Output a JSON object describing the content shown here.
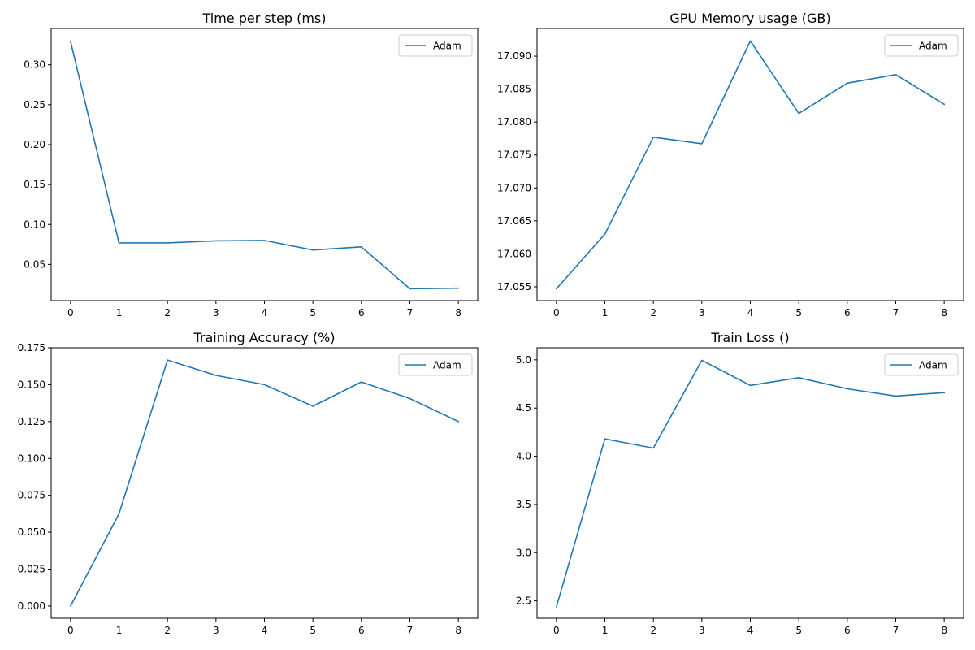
{
  "chart_data": [
    {
      "type": "line",
      "title": "Time per step (ms)",
      "xlabel": "",
      "ylabel": "",
      "x": [
        0,
        1,
        2,
        3,
        4,
        5,
        6,
        7,
        8
      ],
      "xticks": [
        "0",
        "1",
        "2",
        "3",
        "4",
        "5",
        "6",
        "7",
        "8"
      ],
      "yticks": [
        "0.05",
        "0.10",
        "0.15",
        "0.20",
        "0.25",
        "0.30"
      ],
      "xlim": [
        -0.4,
        8.4
      ],
      "ylim": [
        0.0046,
        0.3455
      ],
      "grid": false,
      "legend": "top-right",
      "series": [
        {
          "name": "Adam",
          "values": [
            0.329,
            0.077,
            0.077,
            0.0795,
            0.08,
            0.068,
            0.072,
            0.0195,
            0.0202
          ]
        }
      ]
    },
    {
      "type": "line",
      "title": "GPU Memory usage (GB)",
      "xlabel": "",
      "ylabel": "",
      "x": [
        0,
        1,
        2,
        3,
        4,
        5,
        6,
        7,
        8
      ],
      "xticks": [
        "0",
        "1",
        "2",
        "3",
        "4",
        "5",
        "6",
        "7",
        "8"
      ],
      "yticks": [
        "17.055",
        "17.060",
        "17.065",
        "17.070",
        "17.075",
        "17.080",
        "17.085",
        "17.090"
      ],
      "xlim": [
        -0.4,
        8.4
      ],
      "ylim": [
        17.0529,
        17.0942
      ],
      "grid": false,
      "legend": "top-right",
      "series": [
        {
          "name": "Adam",
          "values": [
            17.0547,
            17.063,
            17.0777,
            17.0767,
            17.0923,
            17.0813,
            17.0859,
            17.0872,
            17.0827
          ]
        }
      ]
    },
    {
      "type": "line",
      "title": "Training Accuracy (%)",
      "xlabel": "",
      "ylabel": "",
      "x": [
        0,
        1,
        2,
        3,
        4,
        5,
        6,
        7,
        8
      ],
      "xticks": [
        "0",
        "1",
        "2",
        "3",
        "4",
        "5",
        "6",
        "7",
        "8"
      ],
      "yticks": [
        "0.000",
        "0.025",
        "0.050",
        "0.075",
        "0.100",
        "0.125",
        "0.150",
        "0.175"
      ],
      "xlim": [
        -0.4,
        8.4
      ],
      "ylim": [
        -0.0083,
        0.175
      ],
      "grid": false,
      "legend": "top-right",
      "series": [
        {
          "name": "Adam",
          "values": [
            0.0,
            0.0625,
            0.1667,
            0.1563,
            0.15,
            0.1354,
            0.1518,
            0.1406,
            0.125
          ]
        }
      ]
    },
    {
      "type": "line",
      "title": "Train Loss ()",
      "xlabel": "",
      "ylabel": "",
      "x": [
        0,
        1,
        2,
        3,
        4,
        5,
        6,
        7,
        8
      ],
      "xticks": [
        "0",
        "1",
        "2",
        "3",
        "4",
        "5",
        "6",
        "7",
        "8"
      ],
      "yticks": [
        "2.5",
        "3.0",
        "3.5",
        "4.0",
        "4.5",
        "5.0"
      ],
      "xlim": [
        -0.4,
        8.4
      ],
      "ylim": [
        2.32,
        5.125
      ],
      "grid": false,
      "legend": "top-right",
      "series": [
        {
          "name": "Adam",
          "values": [
            2.44,
            4.18,
            4.085,
            4.995,
            4.735,
            4.815,
            4.7,
            4.625,
            4.66
          ]
        }
      ]
    }
  ]
}
